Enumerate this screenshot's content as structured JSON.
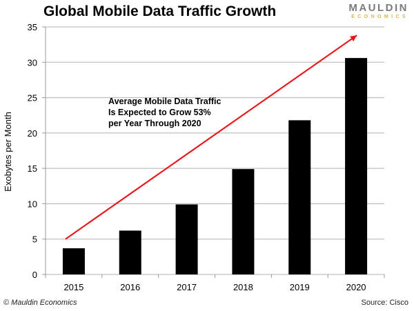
{
  "header": {
    "title": "Global Mobile Data Traffic Growth",
    "logo_line1": "MAULDIN",
    "logo_line2": "ECONOMICS",
    "logo_colors": {
      "line1": "#7a7a7a",
      "line2": "#d9b64c"
    }
  },
  "footer": {
    "copyright": "© Mauldin Economics",
    "source": "Source: Cisco"
  },
  "chart_data": {
    "type": "bar",
    "title": "Global Mobile Data Traffic Growth",
    "xlabel": "",
    "ylabel": "Exobytes per Month",
    "categories": [
      "2015",
      "2016",
      "2017",
      "2018",
      "2019",
      "2020"
    ],
    "values": [
      3.7,
      6.2,
      9.9,
      14.9,
      21.8,
      30.6
    ],
    "ylim": [
      0,
      35
    ],
    "yticks": [
      0,
      5,
      10,
      15,
      20,
      25,
      30,
      35
    ],
    "grid": true,
    "bar_color": "#000000",
    "annotation": {
      "lines": [
        "Average Mobile Data Traffic",
        "Is Expected to Grow 53%",
        "per Year Through  2020"
      ],
      "arrow": {
        "from": {
          "category": "2015",
          "y": 5
        },
        "to": {
          "category": "2020",
          "y": 33.8
        },
        "color": "#e8191c"
      }
    }
  }
}
